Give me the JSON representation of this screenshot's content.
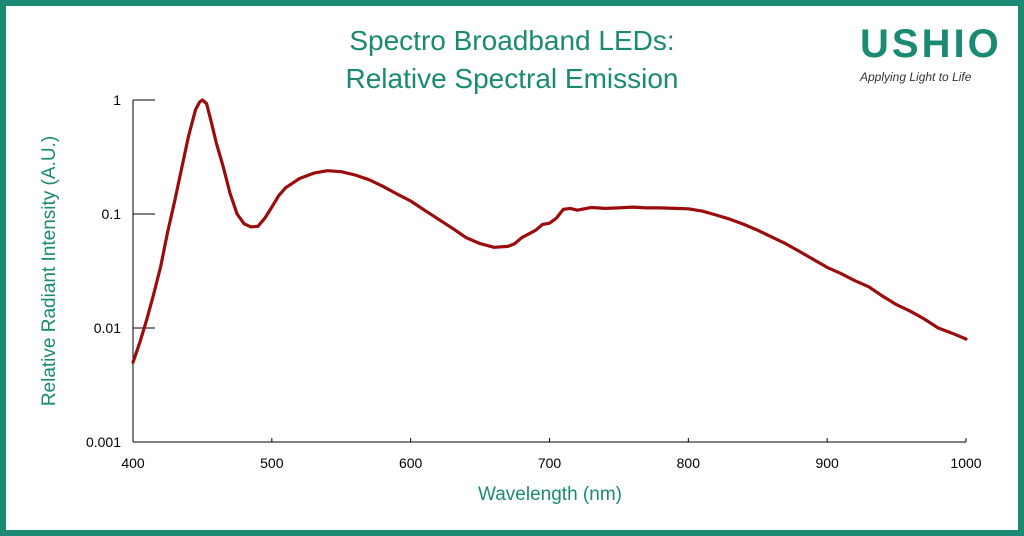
{
  "title_line1": "Spectro Broadband LEDs:",
  "title_line2": "Relative Spectral Emission",
  "logo": {
    "wordmark": "USHIO",
    "tagline": "Applying Light to Life"
  },
  "colors": {
    "accent": "#1a8a72",
    "curve": "#9b0d0d"
  },
  "chart_data": {
    "type": "line",
    "xlabel": "Wavelength (nm)",
    "ylabel": "Relative Radiant Intensity (A.U.)",
    "xlim": [
      400,
      1000
    ],
    "ylim": [
      0.001,
      1
    ],
    "yscale": "log",
    "x_ticks": [
      "400",
      "500",
      "600",
      "700",
      "800",
      "900",
      "1000"
    ],
    "y_ticks": [
      "1",
      "0.1",
      "0.01",
      "0.001"
    ],
    "grid": false,
    "series": [
      {
        "x": [
          400,
          405,
          410,
          415,
          420,
          425,
          430,
          435,
          440,
          445,
          448,
          450,
          453,
          457,
          460,
          465,
          470,
          475,
          480,
          485,
          490,
          495,
          500,
          505,
          510,
          520,
          530,
          540,
          550,
          560,
          570,
          580,
          590,
          600,
          610,
          620,
          630,
          640,
          650,
          660,
          670,
          675,
          680,
          690,
          695,
          700,
          705,
          710,
          715,
          720,
          730,
          740,
          750,
          760,
          770,
          780,
          790,
          800,
          810,
          820,
          830,
          840,
          850,
          860,
          870,
          880,
          890,
          900,
          910,
          920,
          930,
          940,
          950,
          960,
          970,
          980,
          990,
          1000
        ],
        "y": [
          0.005,
          0.0075,
          0.012,
          0.02,
          0.035,
          0.07,
          0.13,
          0.25,
          0.48,
          0.82,
          0.96,
          1.0,
          0.93,
          0.6,
          0.42,
          0.26,
          0.15,
          0.1,
          0.082,
          0.077,
          0.078,
          0.092,
          0.115,
          0.145,
          0.17,
          0.205,
          0.228,
          0.24,
          0.235,
          0.22,
          0.2,
          0.175,
          0.15,
          0.13,
          0.108,
          0.09,
          0.075,
          0.062,
          0.055,
          0.051,
          0.052,
          0.055,
          0.062,
          0.072,
          0.081,
          0.083,
          0.092,
          0.11,
          0.112,
          0.108,
          0.114,
          0.112,
          0.113,
          0.115,
          0.113,
          0.113,
          0.112,
          0.111,
          0.106,
          0.098,
          0.09,
          0.081,
          0.072,
          0.063,
          0.055,
          0.047,
          0.04,
          0.034,
          0.03,
          0.026,
          0.023,
          0.019,
          0.016,
          0.014,
          0.012,
          0.01,
          0.009,
          0.008
        ]
      }
    ]
  }
}
